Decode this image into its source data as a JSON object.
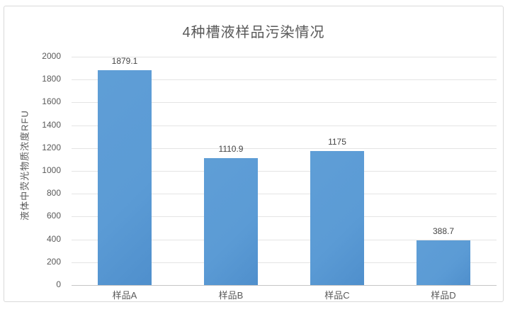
{
  "chart_data": {
    "type": "bar",
    "title": "4种槽液样品污染情况",
    "xlabel": "",
    "ylabel": "液体中荧光物质浓度RFU",
    "categories": [
      "样品A",
      "样品B",
      "样品C",
      "样品D"
    ],
    "values": [
      1879.1,
      1110.9,
      1175,
      388.7
    ],
    "value_labels": [
      "1879.1",
      "1110.9",
      "1175",
      "388.7"
    ],
    "ylim": [
      0,
      2000
    ],
    "ytick_step": 200,
    "ytick_labels": [
      "0",
      "200",
      "400",
      "600",
      "800",
      "1000",
      "1200",
      "1400",
      "1600",
      "1800",
      "2000"
    ],
    "grid": true,
    "legend_position": "none",
    "colors": {
      "bar": "#5b9bd5",
      "gridline": "#e4e4e4",
      "axis_line": "#c6c6c6",
      "text": "#595959",
      "frame_border": "#d9d9d9"
    }
  }
}
